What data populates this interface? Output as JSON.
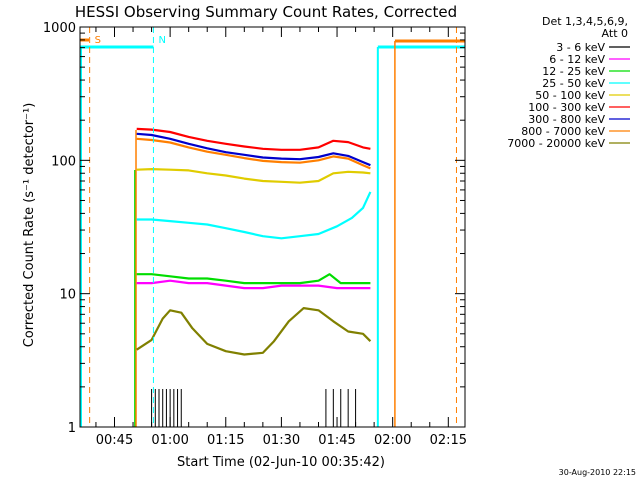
{
  "chart_data": {
    "type": "line",
    "title": "HESSI Observing Summary Count Rates, Corrected",
    "xlabel": "Start Time (02-Jun-10 00:35:42)",
    "ylabel": "Corrected Count Rate (s⁻¹ detector⁻¹)",
    "yscale": "log",
    "ylim": [
      1,
      1000
    ],
    "xlim_minutes": [
      35.7,
      139.5
    ],
    "x_ticks": [
      {
        "m": 45,
        "label": "00:45"
      },
      {
        "m": 60,
        "label": "01:00"
      },
      {
        "m": 75,
        "label": "01:15"
      },
      {
        "m": 90,
        "label": "01:30"
      },
      {
        "m": 105,
        "label": "01:45"
      },
      {
        "m": 120,
        "label": "02:00"
      },
      {
        "m": 135,
        "label": "02:15"
      }
    ],
    "x_minor_step": 5,
    "y_ticks": [
      {
        "v": 1,
        "label": "1"
      },
      {
        "v": 10,
        "label": "10"
      },
      {
        "v": 100,
        "label": "100"
      },
      {
        "v": 1000,
        "label": "1000"
      }
    ],
    "legend_header": [
      "Det 1,3,4,5,6,9,",
      "Att 0"
    ],
    "series": [
      {
        "name": "3 - 6 keV",
        "color": "#000000",
        "points": [
          [
            55,
            1.0
          ],
          [
            56,
            1.0
          ],
          [
            57,
            1.0
          ],
          [
            58,
            1.0
          ],
          [
            59,
            1.0
          ],
          [
            60,
            1.0
          ],
          [
            61,
            1.0
          ],
          [
            62,
            1.0
          ],
          [
            63,
            1.0
          ],
          [
            102,
            1.0
          ],
          [
            104,
            1.0
          ],
          [
            106,
            1.0
          ],
          [
            108,
            1.0
          ],
          [
            110,
            1.0
          ]
        ],
        "note": "sparse counts near 1 bottom baseline"
      },
      {
        "name": "6 - 12 keV",
        "color": "#ff00ff",
        "points": [
          [
            51,
            12
          ],
          [
            55,
            12
          ],
          [
            60,
            12.5
          ],
          [
            65,
            12
          ],
          [
            70,
            12
          ],
          [
            75,
            11.5
          ],
          [
            80,
            11
          ],
          [
            85,
            11
          ],
          [
            90,
            11.5
          ],
          [
            95,
            11.5
          ],
          [
            100,
            11.5
          ],
          [
            105,
            11
          ],
          [
            110,
            11
          ],
          [
            114,
            11
          ]
        ]
      },
      {
        "name": "12 - 25 keV",
        "color": "#00dd00",
        "points": [
          [
            51,
            14
          ],
          [
            55,
            14
          ],
          [
            60,
            13.5
          ],
          [
            65,
            13
          ],
          [
            70,
            13
          ],
          [
            75,
            12.5
          ],
          [
            80,
            12
          ],
          [
            85,
            12
          ],
          [
            90,
            12
          ],
          [
            95,
            12
          ],
          [
            100,
            12.5
          ],
          [
            103,
            14
          ],
          [
            106,
            12
          ],
          [
            110,
            12
          ],
          [
            114,
            12
          ]
        ]
      },
      {
        "name": "25 - 50 keV",
        "color": "#00ffff",
        "points": [
          [
            51,
            36
          ],
          [
            55,
            36
          ],
          [
            60,
            35
          ],
          [
            65,
            34
          ],
          [
            70,
            33
          ],
          [
            75,
            31
          ],
          [
            80,
            29
          ],
          [
            85,
            27
          ],
          [
            90,
            26
          ],
          [
            95,
            27
          ],
          [
            100,
            28
          ],
          [
            105,
            32
          ],
          [
            109,
            37
          ],
          [
            112,
            44
          ],
          [
            114,
            58
          ]
        ]
      },
      {
        "name": "50 - 100 keV",
        "color": "#e0cc00",
        "points": [
          [
            51,
            85
          ],
          [
            55,
            86
          ],
          [
            60,
            85
          ],
          [
            65,
            84
          ],
          [
            70,
            80
          ],
          [
            75,
            77
          ],
          [
            80,
            73
          ],
          [
            85,
            70
          ],
          [
            90,
            69
          ],
          [
            95,
            68
          ],
          [
            100,
            70
          ],
          [
            104,
            80
          ],
          [
            108,
            82
          ],
          [
            112,
            81
          ],
          [
            114,
            80
          ]
        ]
      },
      {
        "name": "100 - 300 keV",
        "color": "#ff0000",
        "points": [
          [
            51,
            172
          ],
          [
            55,
            170
          ],
          [
            60,
            163
          ],
          [
            65,
            150
          ],
          [
            70,
            140
          ],
          [
            75,
            133
          ],
          [
            80,
            127
          ],
          [
            85,
            122
          ],
          [
            90,
            120
          ],
          [
            95,
            120
          ],
          [
            100,
            125
          ],
          [
            104,
            140
          ],
          [
            108,
            137
          ],
          [
            112,
            125
          ],
          [
            114,
            122
          ]
        ]
      },
      {
        "name": "300 - 800 keV",
        "color": "#0000cc",
        "points": [
          [
            51,
            158
          ],
          [
            55,
            155
          ],
          [
            60,
            145
          ],
          [
            65,
            133
          ],
          [
            70,
            123
          ],
          [
            75,
            115
          ],
          [
            80,
            110
          ],
          [
            85,
            105
          ],
          [
            90,
            103
          ],
          [
            95,
            102
          ],
          [
            100,
            106
          ],
          [
            104,
            113
          ],
          [
            108,
            108
          ],
          [
            112,
            97
          ],
          [
            114,
            92
          ]
        ]
      },
      {
        "name": "800 - 7000 keV",
        "color": "#ff7f00",
        "points": [
          [
            51,
            145
          ],
          [
            55,
            142
          ],
          [
            60,
            136
          ],
          [
            65,
            125
          ],
          [
            70,
            116
          ],
          [
            75,
            110
          ],
          [
            80,
            104
          ],
          [
            85,
            99
          ],
          [
            90,
            97
          ],
          [
            95,
            96
          ],
          [
            100,
            100
          ],
          [
            104,
            107
          ],
          [
            108,
            103
          ],
          [
            112,
            92
          ],
          [
            114,
            87
          ]
        ]
      },
      {
        "name": "7000 - 20000 keV",
        "color": "#808000",
        "points": [
          [
            51,
            3.8
          ],
          [
            55,
            4.5
          ],
          [
            58,
            6.5
          ],
          [
            60,
            7.5
          ],
          [
            63,
            7.2
          ],
          [
            66,
            5.5
          ],
          [
            70,
            4.2
          ],
          [
            75,
            3.7
          ],
          [
            80,
            3.5
          ],
          [
            85,
            3.6
          ],
          [
            88,
            4.4
          ],
          [
            92,
            6.2
          ],
          [
            96,
            7.8
          ],
          [
            100,
            7.5
          ],
          [
            104,
            6.2
          ],
          [
            108,
            5.2
          ],
          [
            112,
            5.0
          ],
          [
            114,
            4.4
          ]
        ]
      }
    ],
    "markers": [
      {
        "label": "S",
        "minute": 38.3,
        "color": "#ff7f00"
      },
      {
        "label": "N",
        "minute": 55.5,
        "color": "#00ffff"
      }
    ]
  },
  "timestamp": "30-Aug-2010 22:15"
}
